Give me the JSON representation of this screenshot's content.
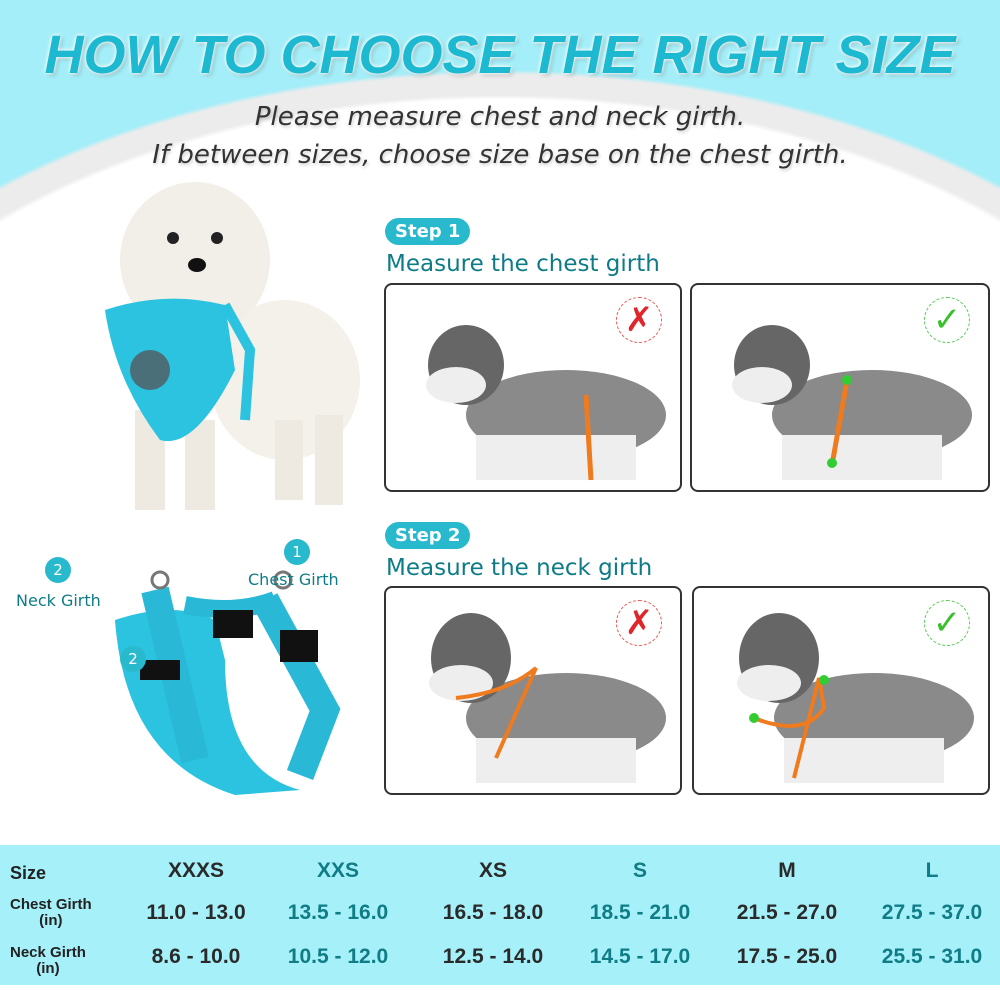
{
  "title": "HOW TO CHOOSE THE RIGHT SIZE",
  "subtitle": [
    "Please measure chest and neck girth.",
    "If between sizes, choose size base on the chest girth."
  ],
  "steps": [
    {
      "badge": "Step 1",
      "heading": "Measure the chest girth",
      "wrong_icon": "red-x-icon",
      "right_icon": "green-check-icon"
    },
    {
      "badge": "Step 2",
      "heading": "Measure the neck girth",
      "wrong_icon": "red-x-icon",
      "right_icon": "green-check-icon"
    }
  ],
  "harness_labels": {
    "chest_num": "1",
    "chest": "Chest Girth",
    "neck_num": "2",
    "neck": "Neck Girth",
    "marker": "2"
  },
  "table": {
    "row_labels": [
      "Size",
      "Chest Girth\n(in)",
      "Neck Girth\n(in)"
    ],
    "sizes": [
      "XXXS",
      "XXS",
      "XS",
      "S",
      "M",
      "L"
    ],
    "chest": [
      "11.0 - 13.0",
      "13.5 - 16.0",
      "16.5 - 18.0",
      "18.5 - 21.0",
      "21.5 - 27.0",
      "27.5 - 37.0"
    ],
    "neck": [
      "8.6 - 10.0",
      "10.5 - 12.0",
      "12.5 - 14.0",
      "14.5 - 17.0",
      "17.5 - 25.0",
      "25.5 - 31.0"
    ]
  },
  "colors": {
    "accent": "#1cb9d1",
    "teal_text": "#0f7c86",
    "table_bg": "#a6f0f9",
    "harness": "#2bc3e0",
    "strap": "#f07a1e"
  }
}
